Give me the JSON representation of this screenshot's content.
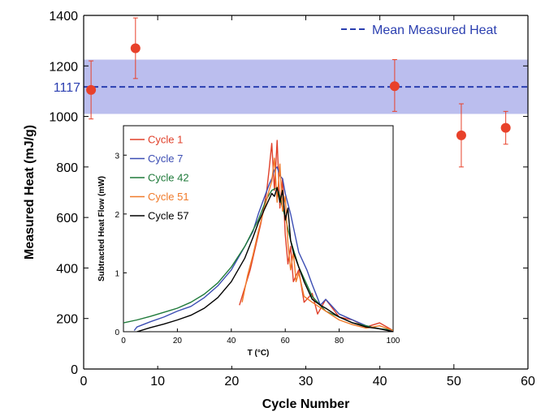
{
  "chart_data": [
    {
      "type": "scatter",
      "xlabel": "Cycle Number",
      "ylabel": "Measured Heat (mJ/g)",
      "xlim": [
        0,
        60
      ],
      "ylim": [
        0,
        1400
      ],
      "xticks": [
        0,
        10,
        20,
        30,
        40,
        50,
        60
      ],
      "yticks": [
        0,
        200,
        400,
        600,
        800,
        1000,
        1200,
        1400
      ],
      "grid": false,
      "points": [
        {
          "x": 1,
          "y": 1105,
          "err_low": 990,
          "err_high": 1220
        },
        {
          "x": 7,
          "y": 1270,
          "err_low": 1150,
          "err_high": 1390
        },
        {
          "x": 42,
          "y": 1120,
          "err_low": 1020,
          "err_high": 1225
        },
        {
          "x": 51,
          "y": 925,
          "err_low": 800,
          "err_high": 1050
        },
        {
          "x": 57,
          "y": 955,
          "err_low": 890,
          "err_high": 1020
        }
      ],
      "mean_line": {
        "label": "Mean Measured Heat",
        "value": 1117,
        "value_label": "1117",
        "band": [
          1010,
          1225
        ]
      },
      "legend_position": "top-right",
      "colors": {
        "points": "#e8412a",
        "mean": "#2b3fb0",
        "band": "#b4b7ec",
        "axis": "#000000"
      }
    },
    {
      "type": "line",
      "xlabel": "T (°C)",
      "ylabel": "Subtracted Heat Flow (mW)",
      "xlim": [
        0,
        100
      ],
      "ylim": [
        0,
        3.5
      ],
      "xticks": [
        0,
        20,
        40,
        60,
        80,
        100
      ],
      "yticks": [
        0,
        1,
        2,
        3
      ],
      "legend_position": "top-left",
      "series": [
        {
          "name": "Cycle 1",
          "color": "#e0402a",
          "x": [
            43,
            45,
            47,
            49,
            51,
            53,
            54,
            55,
            56,
            57,
            58,
            59,
            60,
            61,
            62,
            63,
            65,
            67,
            70,
            72,
            75,
            80,
            85,
            90,
            95,
            100
          ],
          "y": [
            0.45,
            0.75,
            1.05,
            1.45,
            1.85,
            2.35,
            2.75,
            3.2,
            2.4,
            3.25,
            2.1,
            2.6,
            1.65,
            1.15,
            1.45,
            0.85,
            1.05,
            0.5,
            0.65,
            0.3,
            0.55,
            0.25,
            0.2,
            0.08,
            0.15,
            0.02
          ]
        },
        {
          "name": "Cycle 7",
          "color": "#3b4db3",
          "x": [
            4,
            5,
            10,
            15,
            20,
            25,
            30,
            35,
            40,
            45,
            48,
            50,
            52,
            54,
            55,
            56,
            57,
            58,
            59,
            60,
            62,
            65,
            68,
            70,
            73,
            75,
            80,
            85,
            90,
            95,
            100
          ],
          "y": [
            0.02,
            0.08,
            0.17,
            0.25,
            0.35,
            0.43,
            0.58,
            0.78,
            1.05,
            1.45,
            1.7,
            2.0,
            2.25,
            2.5,
            2.6,
            2.75,
            2.8,
            2.65,
            2.6,
            2.35,
            2.0,
            1.35,
            1.05,
            0.8,
            0.45,
            0.55,
            0.3,
            0.2,
            0.1,
            0.05,
            0.02
          ]
        },
        {
          "name": "Cycle 42",
          "color": "#1f7a3a",
          "x": [
            0,
            5,
            10,
            15,
            20,
            25,
            30,
            35,
            40,
            45,
            50,
            53,
            55,
            57,
            58,
            59,
            60,
            62,
            65,
            68,
            70,
            75,
            80,
            85,
            90,
            95,
            100
          ],
          "y": [
            0.15,
            0.2,
            0.26,
            0.33,
            0.4,
            0.5,
            0.64,
            0.83,
            1.1,
            1.45,
            1.9,
            2.25,
            2.4,
            2.45,
            2.3,
            2.1,
            1.95,
            1.55,
            1.1,
            0.8,
            0.6,
            0.35,
            0.25,
            0.15,
            0.1,
            0.05,
            0.03
          ]
        },
        {
          "name": "Cycle 51",
          "color": "#f07a2a",
          "x": [
            44,
            46,
            48,
            50,
            52,
            54,
            55,
            56,
            57,
            58,
            59,
            60,
            61,
            62,
            63,
            64,
            65,
            67,
            70,
            75,
            80,
            85,
            90,
            95,
            100
          ],
          "y": [
            0.5,
            0.95,
            1.3,
            1.7,
            2.05,
            2.4,
            2.55,
            2.95,
            2.2,
            2.85,
            2.05,
            2.3,
            1.5,
            1.05,
            1.35,
            0.85,
            1.0,
            0.6,
            0.5,
            0.35,
            0.2,
            0.12,
            0.06,
            0.1,
            0.02
          ]
        },
        {
          "name": "Cycle 57",
          "color": "#000000",
          "x": [
            5,
            10,
            15,
            20,
            25,
            30,
            35,
            40,
            45,
            48,
            50,
            52,
            54,
            55,
            56,
            57,
            58,
            59,
            60,
            61,
            62,
            63,
            65,
            67,
            70,
            73,
            75,
            80,
            85,
            90,
            95,
            100
          ],
          "y": [
            0.0,
            0.07,
            0.13,
            0.2,
            0.28,
            0.4,
            0.58,
            0.85,
            1.25,
            1.6,
            1.85,
            2.05,
            2.25,
            2.35,
            2.3,
            2.45,
            2.2,
            2.4,
            1.9,
            2.1,
            1.55,
            1.35,
            1.1,
            0.85,
            0.55,
            0.45,
            0.4,
            0.25,
            0.15,
            0.08,
            0.05,
            0.0
          ]
        }
      ]
    }
  ]
}
